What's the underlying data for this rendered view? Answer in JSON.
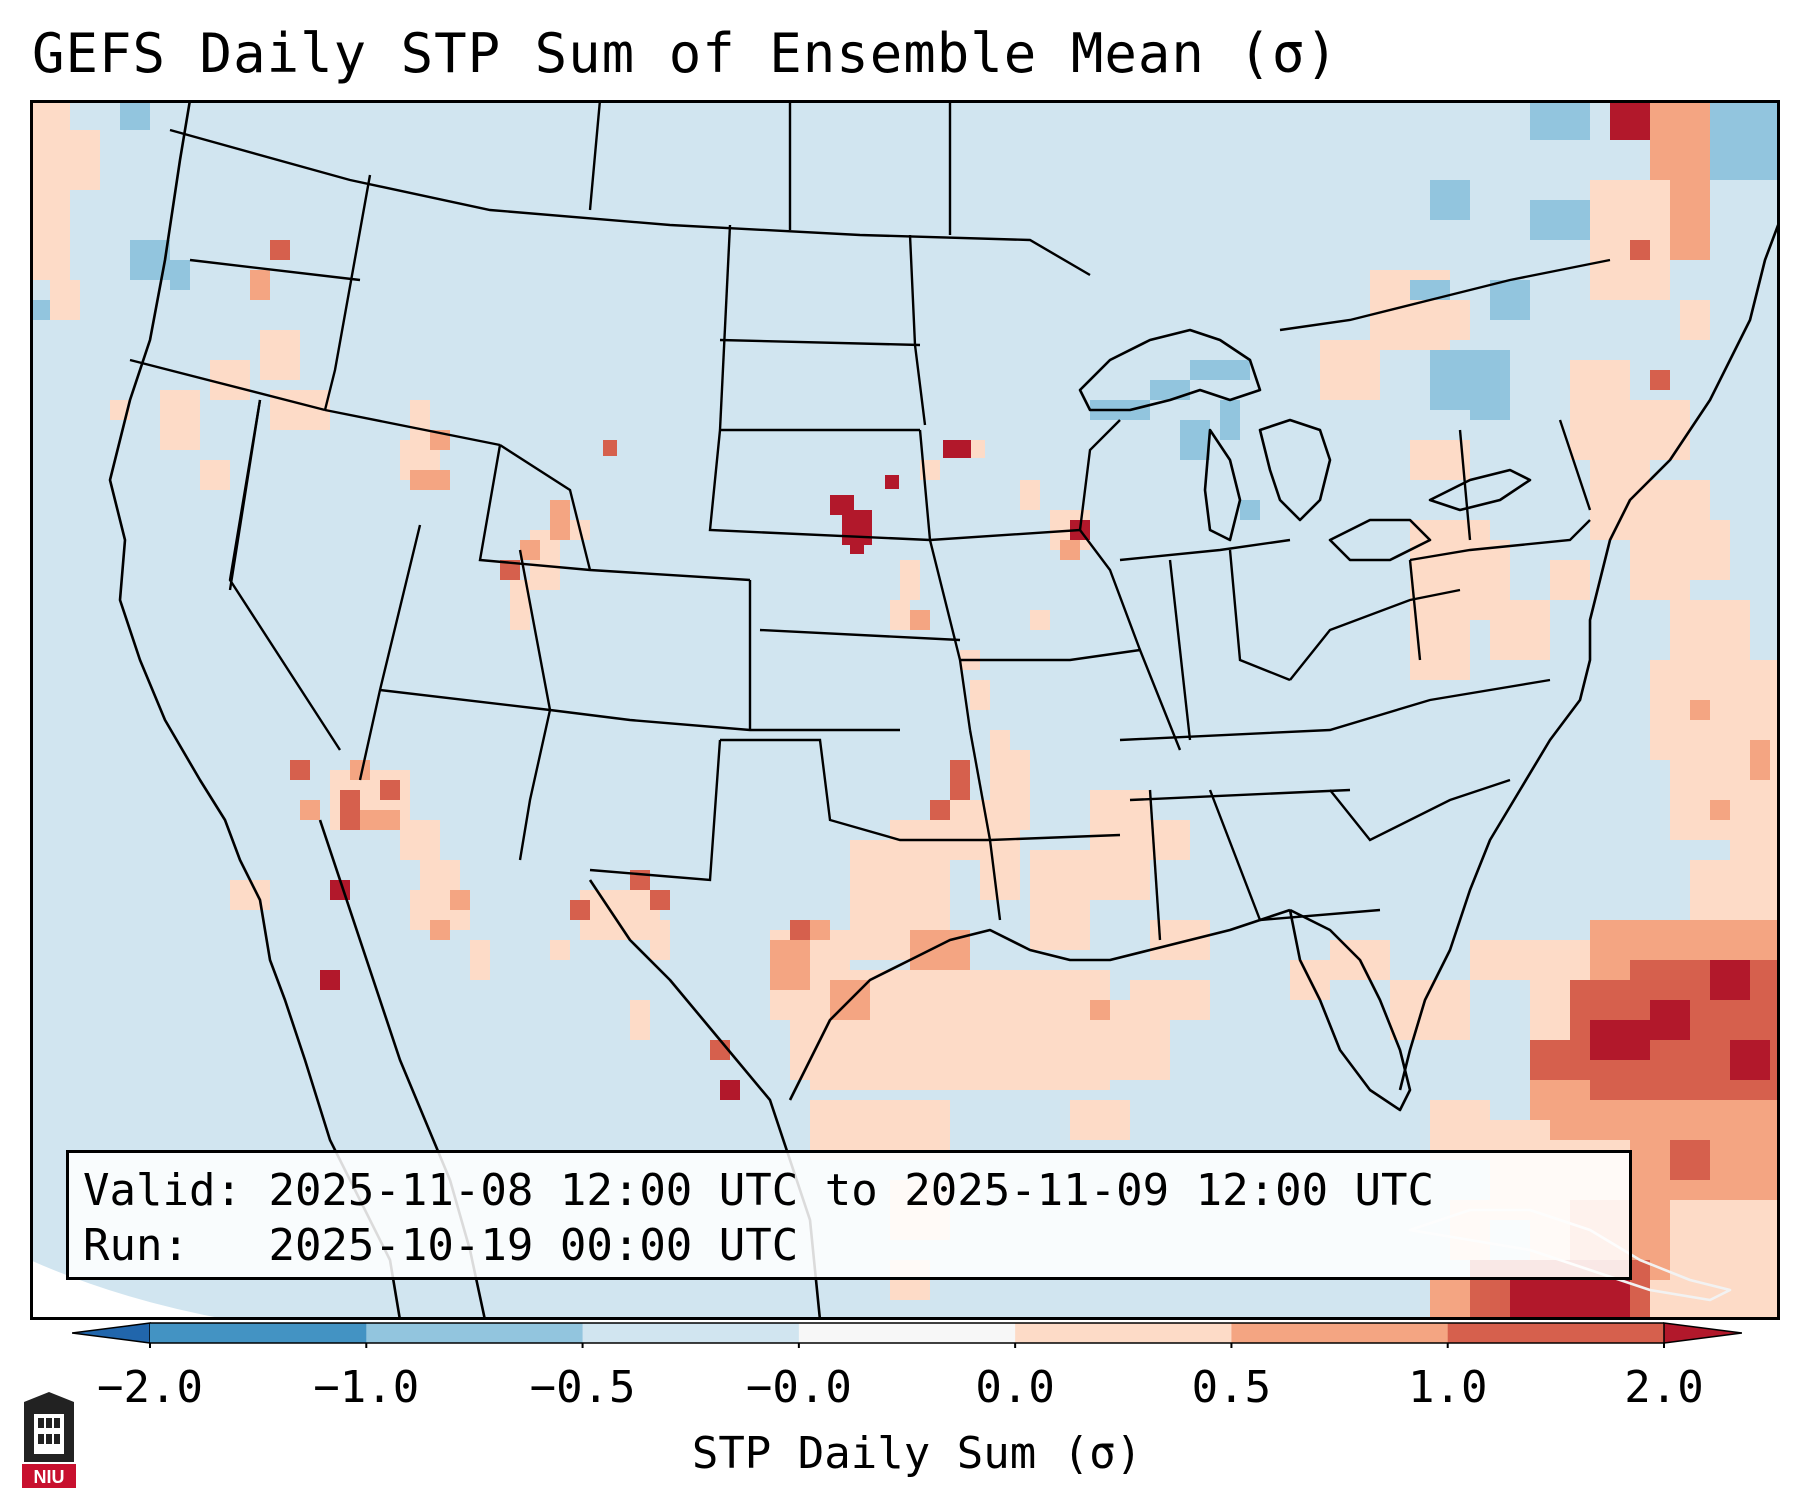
{
  "title": "GEFS Daily STP Sum of Ensemble Mean (σ)",
  "info": {
    "valid_label": "Valid:",
    "valid_value": "2025-11-08 12:00 UTC to 2025-11-09 12:00 UTC",
    "run_label": "Run:",
    "run_value": "2025-10-19 00:00 UTC"
  },
  "colorbar": {
    "label": "STP Daily Sum (σ)",
    "ticks": [
      "−2.0",
      "−1.0",
      "−0.5",
      "−0.0",
      "0.0",
      "0.5",
      "1.0",
      "2.0"
    ],
    "colors": [
      "#4393c3",
      "#92c5de",
      "#d1e5f0",
      "#f7f7f7",
      "#fddbc7",
      "#f4a582",
      "#d6604d"
    ],
    "extend_low": "#2166ac",
    "extend_high": "#b2182b"
  },
  "map_colors": {
    "background": "#d1e5f0",
    "outside_domain": "#ffffff",
    "light_red": "#fddbc7",
    "medium_red": "#f4a582",
    "red": "#d6604d",
    "dark_red": "#b2182b",
    "light_blue": "#92c5de"
  },
  "logo_text": "NIU"
}
